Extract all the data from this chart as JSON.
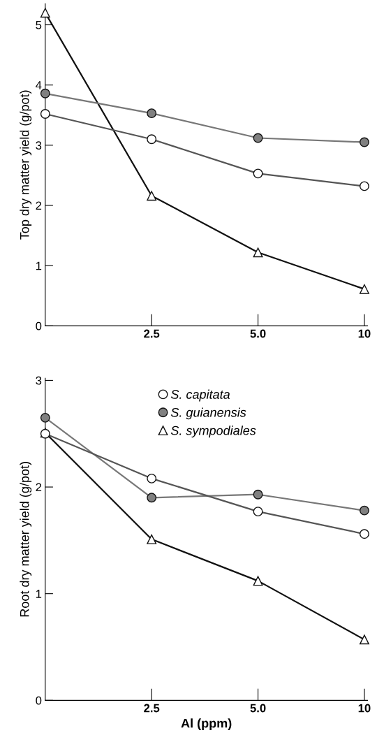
{
  "chart_data": [
    {
      "type": "line",
      "ylabel": "Top dry matter yield (g/pot)",
      "categories": [
        null,
        "2.5",
        "5.0",
        "10"
      ],
      "ylim": [
        0,
        5.35
      ],
      "yticks": [
        0,
        1,
        2,
        3,
        4,
        5
      ],
      "grid": false,
      "legend": false,
      "series": [
        {
          "color": "#ffffff",
          "marker": "circle",
          "values": [
            3.52,
            3.1,
            2.53,
            2.32
          ]
        },
        {
          "color": "#808080",
          "marker": "circle",
          "values": [
            3.86,
            3.53,
            3.12,
            3.05
          ]
        },
        {
          "color": "#ffffff",
          "marker": "triangle",
          "values": [
            5.2,
            2.16,
            1.22,
            0.61
          ]
        }
      ]
    },
    {
      "type": "line",
      "ylabel": "Root dry matter yield (g/pot)",
      "xlabel": "Al (ppm)",
      "categories": [
        null,
        "2.5",
        "5.0",
        "10"
      ],
      "ylim": [
        0,
        3.02
      ],
      "yticks": [
        0,
        1,
        2,
        3
      ],
      "grid": false,
      "legend": "top",
      "series": [
        {
          "name": "S. capitata",
          "color": "#ffffff",
          "marker": "circle",
          "values": [
            2.5,
            2.08,
            1.77,
            1.56
          ]
        },
        {
          "name": "S. guianensis",
          "color": "#808080",
          "marker": "circle",
          "values": [
            2.65,
            1.9,
            1.93,
            1.78
          ]
        },
        {
          "name": "S. sympodiales",
          "color": "#ffffff",
          "marker": "triangle",
          "values": [
            2.51,
            1.51,
            1.12,
            0.57
          ]
        }
      ]
    }
  ]
}
